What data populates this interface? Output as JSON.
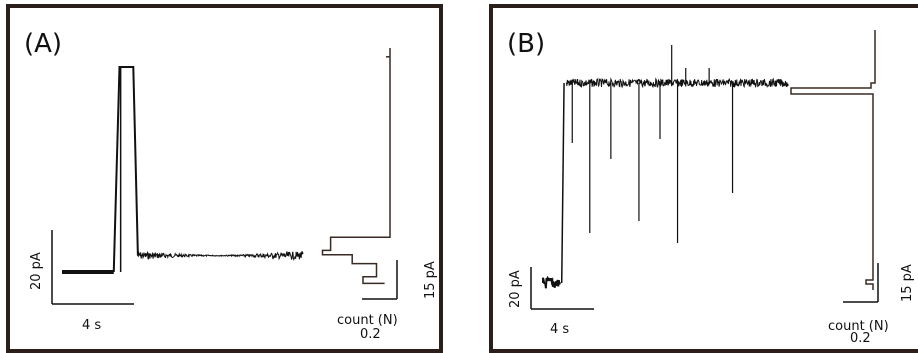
{
  "chart_data": [
    {
      "type": "line",
      "panel_label": "(A)",
      "trace": {
        "baseline_level": 0,
        "spike_level": 100,
        "noise_level": 8,
        "x": [
          0.0,
          0.3,
          0.45,
          0.5,
          0.62,
          0.66,
          2.1
        ],
        "y": [
          0,
          0,
          0,
          100,
          100,
          8,
          8
        ]
      },
      "histogram": {
        "counts": [
          0.25,
          0.22,
          0.14,
          0.05,
          0.02,
          0.0
        ],
        "levels": [
          0,
          2,
          5,
          8,
          12,
          100
        ]
      },
      "scale_bars": {
        "y_label": "20 pA",
        "x_label": "4 s",
        "hist_y_label": "15 pA",
        "hist_x_label": "count (N)",
        "hist_x_value": "0.2"
      }
    },
    {
      "type": "line",
      "panel_label": "(B)",
      "trace": {
        "baseline_level": 0,
        "open_level": 100,
        "x": [
          0.0,
          0.15,
          0.2,
          2.1
        ],
        "y": [
          0,
          0,
          100,
          100
        ],
        "blockades": [
          {
            "x": 0.25,
            "depth": 30
          },
          {
            "x": 0.4,
            "depth": 75
          },
          {
            "x": 0.58,
            "depth": 38
          },
          {
            "x": 0.82,
            "depth": 69
          },
          {
            "x": 1.0,
            "depth": 28
          },
          {
            "x": 1.15,
            "depth": 80
          },
          {
            "x": 1.62,
            "depth": 55
          }
        ]
      },
      "histogram": {
        "counts": [
          0.3,
          0.05,
          0.02
        ],
        "levels": [
          100,
          97,
          0
        ]
      },
      "scale_bars": {
        "y_label": "20 pA",
        "x_label": "4 s",
        "hist_y_label": "15 pA",
        "hist_x_label": "count (N)",
        "hist_x_value": "0.2"
      }
    }
  ]
}
